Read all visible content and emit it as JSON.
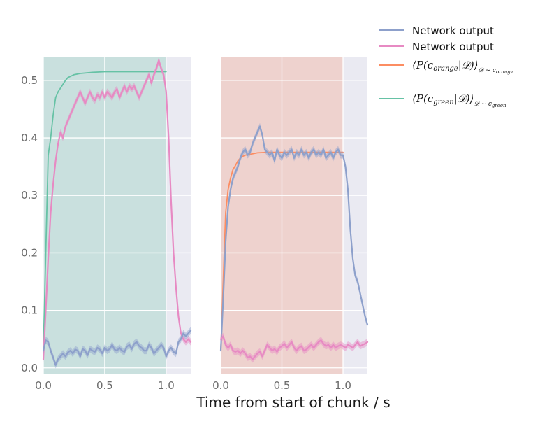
{
  "chart_data": {
    "type": "line",
    "xlabel": "Time from start of chunk / s",
    "ylabel": "",
    "xlim": [
      0,
      1.2
    ],
    "ylim": [
      -0.01,
      0.54
    ],
    "grid": true,
    "legend_placement": "outside-right-top",
    "background_color": "#EAEAF2",
    "grid_color": "#FFFFFF",
    "panels": [
      {
        "shaded_region": {
          "x_from": 0.0,
          "x_to": 1.0,
          "color": "#66C2A5",
          "alpha": 0.25
        },
        "xticks": [
          "0.0",
          "0.5",
          "1.0"
        ],
        "yticks": [
          "0.0",
          "0.1",
          "0.2",
          "0.3",
          "0.4",
          "0.5"
        ],
        "series": [
          {
            "color": "#66C2A5",
            "x": [
              0.0,
              0.02,
              0.04,
              0.06,
              0.08,
              0.1,
              0.12,
              0.15,
              0.18,
              0.2,
              0.25,
              0.3,
              0.4,
              0.5,
              0.6,
              0.8,
              1.0
            ],
            "y": [
              0.03,
              0.2,
              0.37,
              0.4,
              0.44,
              0.47,
              0.48,
              0.49,
              0.5,
              0.505,
              0.51,
              0.512,
              0.514,
              0.515,
              0.515,
              0.515,
              0.515
            ]
          },
          {
            "color": "#E78AC3",
            "band": 0.006,
            "x": [
              0.0,
              0.02,
              0.04,
              0.06,
              0.08,
              0.1,
              0.12,
              0.14,
              0.16,
              0.18,
              0.2,
              0.22,
              0.24,
              0.26,
              0.28,
              0.3,
              0.32,
              0.34,
              0.36,
              0.38,
              0.4,
              0.42,
              0.44,
              0.46,
              0.48,
              0.5,
              0.52,
              0.54,
              0.56,
              0.58,
              0.6,
              0.62,
              0.64,
              0.66,
              0.68,
              0.7,
              0.72,
              0.74,
              0.76,
              0.78,
              0.8,
              0.82,
              0.84,
              0.86,
              0.88,
              0.9,
              0.92,
              0.94,
              0.96,
              0.98,
              1.0,
              1.02,
              1.04,
              1.06,
              1.08,
              1.1,
              1.12,
              1.14,
              1.16,
              1.18,
              1.2
            ],
            "y": [
              0.015,
              0.1,
              0.19,
              0.27,
              0.32,
              0.36,
              0.39,
              0.41,
              0.4,
              0.42,
              0.43,
              0.44,
              0.45,
              0.46,
              0.47,
              0.48,
              0.47,
              0.46,
              0.47,
              0.48,
              0.47,
              0.465,
              0.475,
              0.47,
              0.48,
              0.47,
              0.48,
              0.475,
              0.47,
              0.48,
              0.485,
              0.47,
              0.48,
              0.49,
              0.48,
              0.49,
              0.485,
              0.49,
              0.48,
              0.47,
              0.48,
              0.49,
              0.5,
              0.51,
              0.495,
              0.51,
              0.52,
              0.535,
              0.52,
              0.51,
              0.48,
              0.4,
              0.29,
              0.2,
              0.14,
              0.09,
              0.06,
              0.05,
              0.045,
              0.05,
              0.045
            ]
          },
          {
            "color": "#8DA0CB",
            "band": 0.006,
            "x": [
              0.0,
              0.02,
              0.04,
              0.06,
              0.08,
              0.1,
              0.12,
              0.14,
              0.16,
              0.18,
              0.2,
              0.22,
              0.24,
              0.26,
              0.28,
              0.3,
              0.32,
              0.34,
              0.36,
              0.38,
              0.4,
              0.42,
              0.44,
              0.46,
              0.48,
              0.5,
              0.52,
              0.54,
              0.56,
              0.58,
              0.6,
              0.62,
              0.64,
              0.66,
              0.68,
              0.7,
              0.72,
              0.74,
              0.76,
              0.78,
              0.8,
              0.82,
              0.84,
              0.86,
              0.88,
              0.9,
              0.92,
              0.94,
              0.96,
              0.98,
              1.0,
              1.02,
              1.04,
              1.06,
              1.08,
              1.1,
              1.12,
              1.14,
              1.16,
              1.18,
              1.2
            ],
            "y": [
              0.03,
              0.048,
              0.045,
              0.03,
              0.018,
              0.005,
              0.015,
              0.02,
              0.025,
              0.02,
              0.027,
              0.03,
              0.025,
              0.032,
              0.03,
              0.02,
              0.033,
              0.03,
              0.022,
              0.033,
              0.03,
              0.028,
              0.035,
              0.032,
              0.025,
              0.035,
              0.03,
              0.033,
              0.04,
              0.032,
              0.03,
              0.035,
              0.03,
              0.028,
              0.037,
              0.04,
              0.033,
              0.042,
              0.045,
              0.038,
              0.035,
              0.03,
              0.03,
              0.04,
              0.035,
              0.025,
              0.03,
              0.035,
              0.04,
              0.035,
              0.02,
              0.03,
              0.035,
              0.028,
              0.025,
              0.045,
              0.05,
              0.06,
              0.055,
              0.06,
              0.065
            ]
          }
        ]
      },
      {
        "shaded_region": {
          "x_from": 0.0,
          "x_to": 1.0,
          "color": "#FC8D62",
          "alpha": 0.25
        },
        "xticks": [
          "0.0",
          "0.5",
          "1.0"
        ],
        "yticks": [],
        "series": [
          {
            "color": "#FC8D62",
            "x": [
              0.0,
              0.02,
              0.04,
              0.06,
              0.08,
              0.1,
              0.12,
              0.14,
              0.16,
              0.18,
              0.2,
              0.25,
              0.3,
              0.4,
              0.5,
              0.6,
              0.8,
              1.0
            ],
            "y": [
              0.03,
              0.15,
              0.27,
              0.31,
              0.33,
              0.345,
              0.352,
              0.36,
              0.365,
              0.368,
              0.37,
              0.372,
              0.374,
              0.375,
              0.375,
              0.375,
              0.375,
              0.375
            ]
          },
          {
            "color": "#8DA0CB",
            "band": 0.006,
            "x": [
              0.0,
              0.02,
              0.04,
              0.06,
              0.08,
              0.1,
              0.12,
              0.14,
              0.16,
              0.18,
              0.2,
              0.22,
              0.24,
              0.26,
              0.28,
              0.3,
              0.32,
              0.34,
              0.36,
              0.38,
              0.4,
              0.42,
              0.44,
              0.46,
              0.48,
              0.5,
              0.52,
              0.54,
              0.56,
              0.58,
              0.6,
              0.62,
              0.64,
              0.66,
              0.68,
              0.7,
              0.72,
              0.74,
              0.76,
              0.78,
              0.8,
              0.82,
              0.84,
              0.86,
              0.88,
              0.9,
              0.92,
              0.94,
              0.96,
              0.98,
              1.0,
              1.02,
              1.04,
              1.06,
              1.08,
              1.1,
              1.12,
              1.14,
              1.16,
              1.18,
              1.2
            ],
            "y": [
              0.03,
              0.12,
              0.22,
              0.28,
              0.31,
              0.33,
              0.34,
              0.35,
              0.365,
              0.375,
              0.38,
              0.37,
              0.375,
              0.39,
              0.4,
              0.41,
              0.42,
              0.405,
              0.38,
              0.375,
              0.37,
              0.375,
              0.36,
              0.38,
              0.37,
              0.365,
              0.375,
              0.37,
              0.375,
              0.38,
              0.365,
              0.375,
              0.37,
              0.38,
              0.37,
              0.375,
              0.365,
              0.375,
              0.38,
              0.37,
              0.375,
              0.37,
              0.38,
              0.365,
              0.37,
              0.375,
              0.365,
              0.375,
              0.38,
              0.37,
              0.37,
              0.35,
              0.31,
              0.24,
              0.19,
              0.16,
              0.15,
              0.13,
              0.11,
              0.09,
              0.075
            ]
          },
          {
            "color": "#E78AC3",
            "band": 0.006,
            "x": [
              0.0,
              0.02,
              0.04,
              0.06,
              0.08,
              0.1,
              0.12,
              0.14,
              0.16,
              0.18,
              0.2,
              0.22,
              0.24,
              0.26,
              0.28,
              0.3,
              0.32,
              0.34,
              0.36,
              0.38,
              0.4,
              0.42,
              0.44,
              0.46,
              0.48,
              0.5,
              0.52,
              0.54,
              0.56,
              0.58,
              0.6,
              0.62,
              0.64,
              0.66,
              0.68,
              0.7,
              0.72,
              0.74,
              0.76,
              0.78,
              0.8,
              0.82,
              0.84,
              0.86,
              0.88,
              0.9,
              0.92,
              0.94,
              0.96,
              0.98,
              1.0,
              1.02,
              1.04,
              1.06,
              1.08,
              1.1,
              1.12,
              1.14,
              1.16,
              1.18,
              1.2
            ],
            "y": [
              0.05,
              0.055,
              0.04,
              0.035,
              0.04,
              0.03,
              0.028,
              0.03,
              0.025,
              0.03,
              0.025,
              0.018,
              0.02,
              0.015,
              0.02,
              0.025,
              0.028,
              0.02,
              0.03,
              0.04,
              0.035,
              0.03,
              0.033,
              0.028,
              0.035,
              0.038,
              0.042,
              0.035,
              0.04,
              0.045,
              0.035,
              0.03,
              0.035,
              0.038,
              0.03,
              0.032,
              0.036,
              0.04,
              0.035,
              0.04,
              0.045,
              0.048,
              0.042,
              0.038,
              0.04,
              0.035,
              0.04,
              0.035,
              0.038,
              0.04,
              0.038,
              0.035,
              0.04,
              0.038,
              0.035,
              0.04,
              0.045,
              0.038,
              0.04,
              0.042,
              0.045
            ]
          }
        ]
      }
    ],
    "legend": [
      {
        "label": "Network output",
        "color": "#8DA0CB",
        "kind": "text"
      },
      {
        "label": "Network output",
        "color": "#E78AC3",
        "kind": "text"
      },
      {
        "label": "⟨P(c_orange|𝒟)⟩_𝒟~c_orange",
        "color": "#FC8D62",
        "kind": "math",
        "main": "⟨P(c",
        "sub1": "orange",
        "mid": "|𝒟)⟩",
        "sub2": "𝒟 ~ c",
        "sub3": "orange"
      },
      {
        "label": "⟨P(c_green|𝒟)⟩_𝒟~c_green",
        "color": "#66C2A5",
        "kind": "math",
        "main": "⟨P(c",
        "sub1": "green",
        "mid": "|𝒟)⟩",
        "sub2": "𝒟 ~ c",
        "sub3": "green"
      }
    ]
  }
}
